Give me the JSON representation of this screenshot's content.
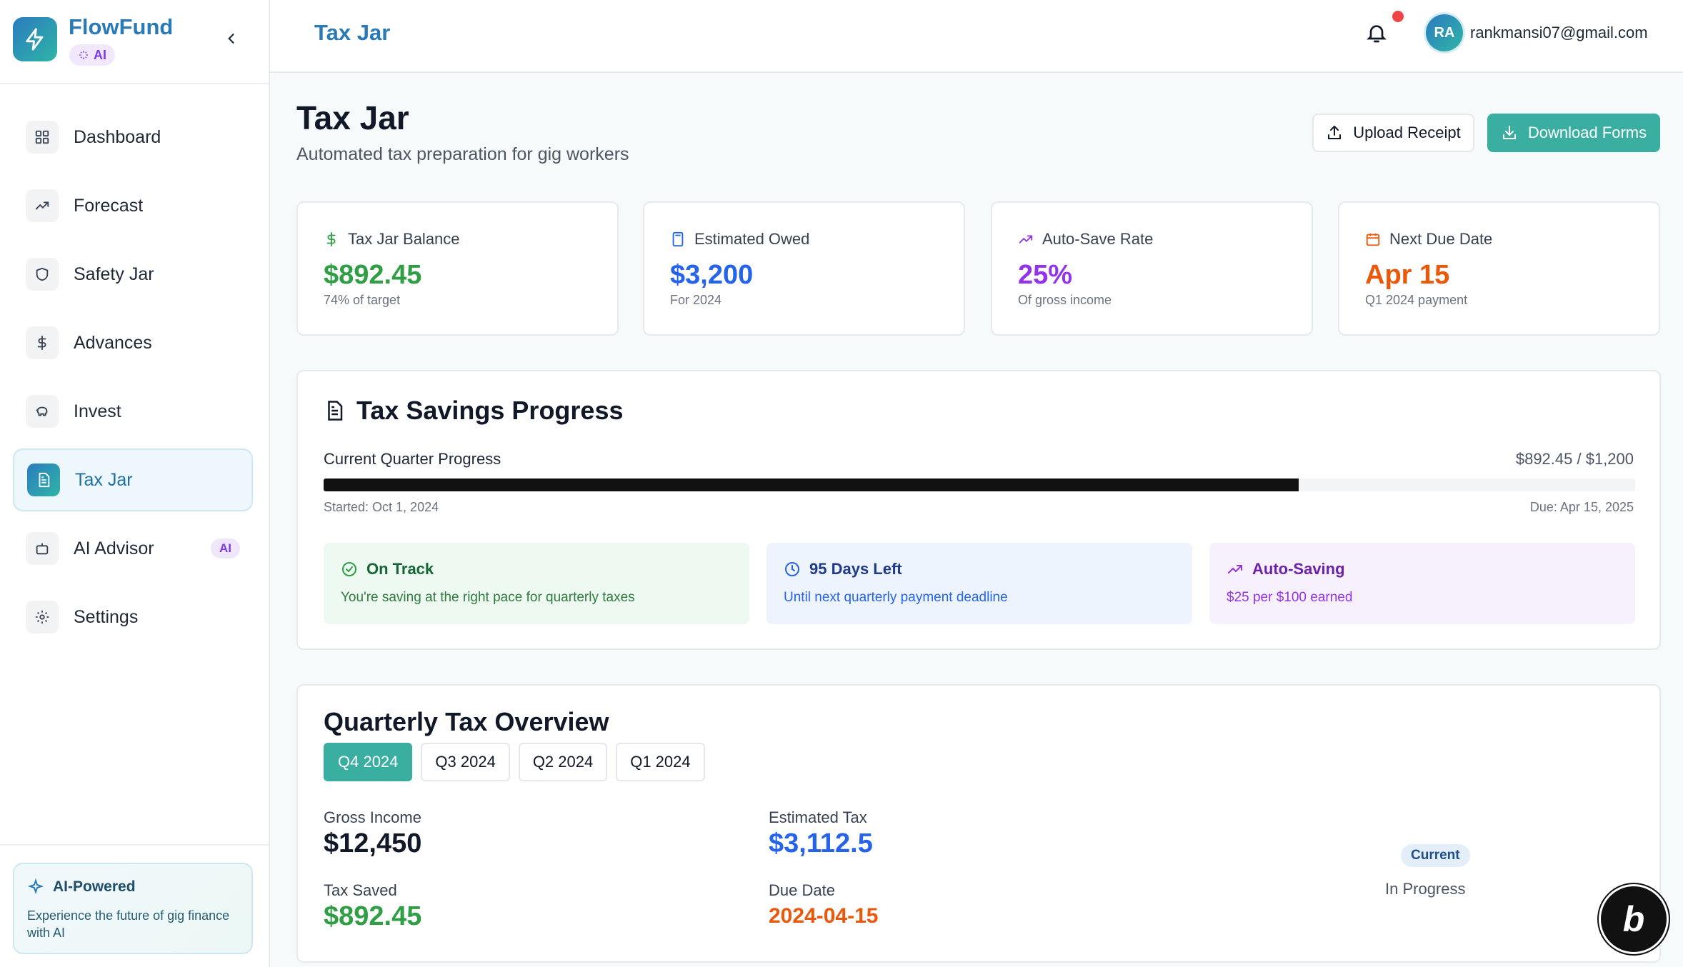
{
  "brand": {
    "name": "FlowFund",
    "ai_chip": "AI"
  },
  "sidebar": {
    "items": [
      {
        "label": "Dashboard",
        "icon": "grid-icon"
      },
      {
        "label": "Forecast",
        "icon": "trending-up-icon"
      },
      {
        "label": "Safety Jar",
        "icon": "shield-icon"
      },
      {
        "label": "Advances",
        "icon": "dollar-icon"
      },
      {
        "label": "Invest",
        "icon": "piggy-bank-icon"
      },
      {
        "label": "Tax Jar",
        "icon": "document-icon",
        "active": true
      },
      {
        "label": "AI Advisor",
        "icon": "bot-icon",
        "badge": "AI"
      },
      {
        "label": "Settings",
        "icon": "gear-icon"
      }
    ],
    "footer": {
      "title": "AI-Powered",
      "text": "Experience the future of gig finance with AI"
    }
  },
  "header": {
    "title": "Tax Jar",
    "avatar_initials": "RA",
    "user_email": "rankmansi07@gmail.com"
  },
  "page": {
    "title": "Tax Jar",
    "subtitle": "Automated tax preparation for gig workers",
    "upload_label": "Upload Receipt",
    "download_label": "Download Forms"
  },
  "stats": [
    {
      "label": "Tax Jar Balance",
      "value": "$892.45",
      "sub": "74% of target",
      "color": "#2f9e44",
      "icon": "dollar-icon"
    },
    {
      "label": "Estimated Owed",
      "value": "$3,200",
      "sub": "For 2024",
      "color": "#2563eb",
      "icon": "calculator-icon"
    },
    {
      "label": "Auto-Save Rate",
      "value": "25%",
      "sub": "Of gross income",
      "color": "#9333ea",
      "icon": "trending-up-icon"
    },
    {
      "label": "Next Due Date",
      "value": "Apr 15",
      "sub": "Q1 2024 payment",
      "color": "#ea580c",
      "icon": "calendar-icon"
    }
  ],
  "progress": {
    "title": "Tax Savings Progress",
    "label": "Current Quarter Progress",
    "amount": "$892.45 / $1,200",
    "fraction": 0.7437,
    "start": "Started: Oct 1, 2024",
    "due": "Due: Apr 15, 2025",
    "statuses": [
      {
        "title": "On Track",
        "text": "You're saving at the right pace for quarterly taxes"
      },
      {
        "title": "95 Days Left",
        "text": "Until next quarterly payment deadline"
      },
      {
        "title": "Auto-Saving",
        "text": "$25 per $100 earned"
      }
    ]
  },
  "quarterly": {
    "title": "Quarterly Tax Overview",
    "tabs": [
      "Q4 2024",
      "Q3 2024",
      "Q2 2024",
      "Q1 2024"
    ],
    "gross_income_label": "Gross Income",
    "gross_income": "$12,450",
    "estimated_tax_label": "Estimated Tax",
    "estimated_tax": "$3,112.5",
    "tax_saved_label": "Tax Saved",
    "tax_saved": "$892.45",
    "due_date_label": "Due Date",
    "due_date": "2024-04-15",
    "status_pill": "Current",
    "status_state": "In Progress"
  },
  "badge": {
    "text": "b"
  }
}
